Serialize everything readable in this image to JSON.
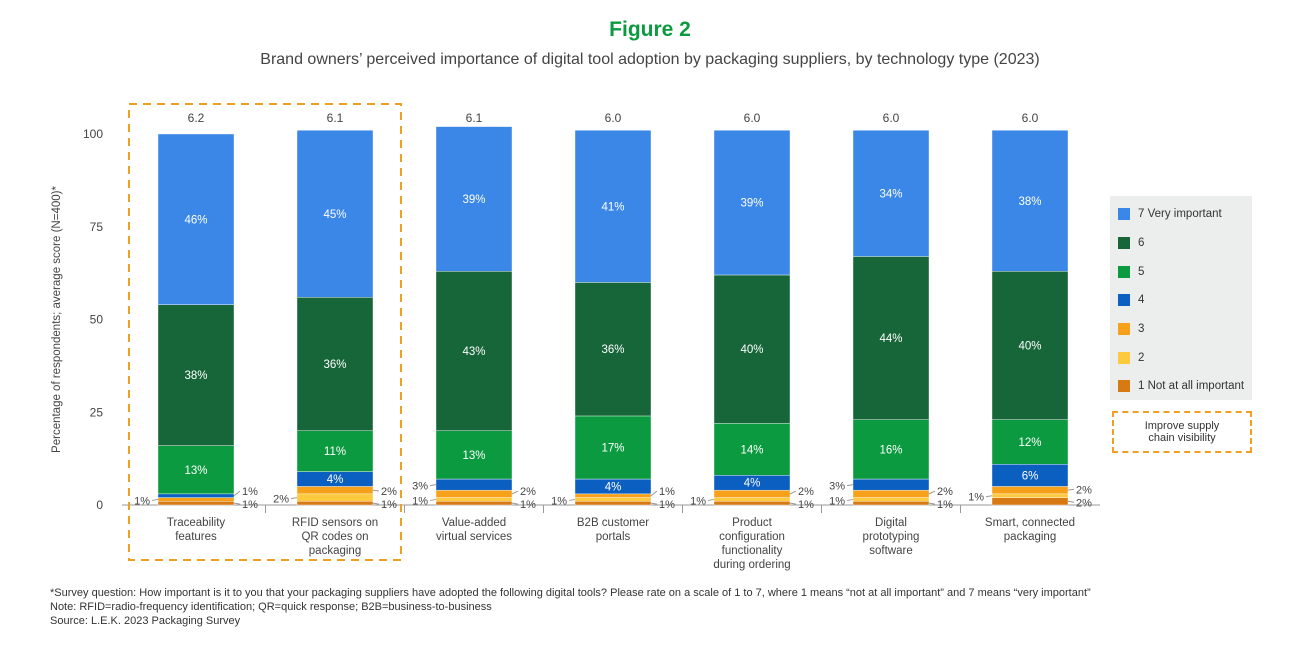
{
  "title": "Figure 2",
  "subtitle": "Brand owners’ perceived importance of digital tool adoption by packaging suppliers, by technology type (2023)",
  "highlight_label": "Improve supply chain visibility",
  "notes": [
    "*Survey question: How important is it to you that your packaging suppliers have adopted the following digital tools? Please rate on a scale of 1 to 7, where 1 means “not at all important” and 7 means “very important”",
    "Note: RFID=radio-frequency identification; QR=quick response; B2B=business-to-business",
    "Source: L.E.K. 2023 Packaging Survey"
  ],
  "chart_data": {
    "type": "bar",
    "stacked": true,
    "ylabel": "Percentage of respondents; average score (N=400)*",
    "ylim": [
      0,
      100
    ],
    "yticks": [
      0,
      25,
      50,
      75,
      100
    ],
    "categories": [
      "Traceability features",
      "RFID sensors on QR codes on packaging",
      "Value-added virtual services",
      "B2B customer portals",
      "Product configuration functionality during ordering",
      "Digital prototyping software",
      "Smart, connected packaging"
    ],
    "average_scores": [
      "6.2",
      "6.1",
      "6.1",
      "6.0",
      "6.0",
      "6.0",
      "6.0"
    ],
    "highlighted_categories": [
      0,
      1
    ],
    "legend_position": "right",
    "series": [
      {
        "name": "1  Not at all important",
        "color": "#d87a14",
        "values": [
          1,
          1,
          1,
          1,
          1,
          1,
          2
        ]
      },
      {
        "name": "2",
        "color": "#fdc93e",
        "values": [
          0,
          2,
          1,
          1,
          1,
          1,
          1
        ]
      },
      {
        "name": "3",
        "color": "#f7a01a",
        "values": [
          1,
          2,
          2,
          1,
          2,
          2,
          2
        ]
      },
      {
        "name": "4",
        "color": "#0a5fc0",
        "values": [
          1,
          4,
          3,
          4,
          4,
          3,
          6
        ]
      },
      {
        "name": "5",
        "color": "#0b9a3f",
        "values": [
          13,
          11,
          13,
          17,
          14,
          16,
          12
        ]
      },
      {
        "name": "6",
        "color": "#17663a",
        "values": [
          38,
          36,
          43,
          36,
          40,
          44,
          40
        ]
      },
      {
        "name": "7  Very important",
        "color": "#3a87e8",
        "values": [
          46,
          45,
          39,
          41,
          39,
          34,
          38
        ]
      }
    ]
  }
}
